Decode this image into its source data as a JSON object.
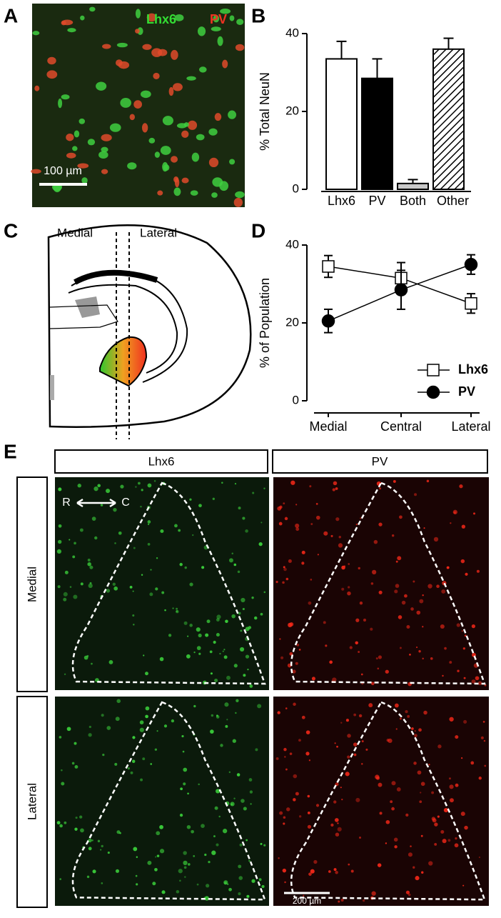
{
  "panels": {
    "letters": [
      "A",
      "B",
      "C",
      "D",
      "E"
    ],
    "a": {
      "labels": [
        "Lhx6",
        "PV"
      ],
      "scale_bar": "100 µm"
    },
    "c": {
      "labels": [
        "Medial",
        "Lateral"
      ]
    },
    "e": {
      "columns": [
        "Lhx6",
        "PV"
      ],
      "rows": [
        "Medial",
        "Lateral"
      ],
      "axis_labels": [
        "R",
        "C"
      ],
      "scale_bar": "200 µm"
    }
  },
  "chart_data": [
    {
      "type": "bar",
      "y_label": "% Total NeuN",
      "categories": [
        "Lhx6",
        "PV",
        "Both",
        "Other"
      ],
      "values": [
        33.5,
        28.5,
        1.5,
        36
      ],
      "errors": [
        4.5,
        5,
        1,
        2.8
      ],
      "colors": [
        "#ffffff",
        "#000000",
        "#c8c8c8",
        "#ffffff"
      ],
      "hatched": [
        false,
        false,
        false,
        true
      ],
      "ylim": [
        0,
        40
      ],
      "yticks": [
        0,
        20,
        40
      ]
    },
    {
      "type": "line",
      "y_label": "% of Population",
      "categories": [
        "Medial",
        "Central",
        "Lateral"
      ],
      "series": [
        {
          "name": "Lhx6",
          "color": "#ffffff",
          "marker": "square",
          "values": [
            34.5,
            31.5,
            25
          ],
          "errors": [
            2.8,
            4,
            2.5
          ]
        },
        {
          "name": "PV",
          "color": "#000000",
          "marker": "circle",
          "values": [
            20.5,
            28.5,
            35
          ],
          "errors": [
            3,
            5,
            2.5
          ]
        }
      ],
      "ylim": [
        0,
        40
      ],
      "yticks": [
        0,
        20,
        40
      ]
    }
  ]
}
